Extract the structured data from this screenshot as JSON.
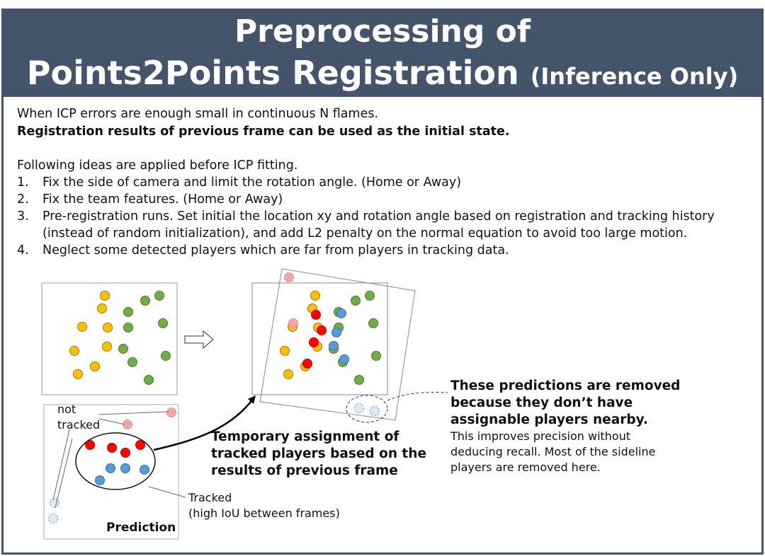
{
  "title": {
    "line1": "Preprocessing of",
    "line2": "Points2Points Registration",
    "line2_suffix": "(Inference Only)"
  },
  "intro": {
    "line1": "When ICP errors are enough small in continuous N flames.",
    "line2": "Registration results of previous frame can be used as the initial state."
  },
  "ideas": {
    "heading": "Following ideas are applied before ICP fitting.",
    "items": [
      {
        "num": "1.",
        "text": "Fix the side of camera and limit the rotation angle. (Home or Away)"
      },
      {
        "num": "2.",
        "text": "Fix the team features. (Home or Away)"
      },
      {
        "num": "3.",
        "text": "Pre-registration runs. Set initial the location xy and rotation angle based on registration and tracking history",
        "text2": "(instead of random initialization), and add L2 penalty on the normal equation to avoid too large motion."
      },
      {
        "num": "4.",
        "text": "Neglect some detected players which are far from players in tracking data."
      }
    ]
  },
  "diagram": {
    "not_tracked_1": "not",
    "not_tracked_2": "tracked",
    "prediction": "Prediction",
    "tracked_1": "Tracked",
    "tracked_2": "(high IoU between frames)",
    "temp_1": "Temporary assignment of",
    "temp_2": "tracked players based on the",
    "temp_3": "results of previous frame",
    "removed_1": "These predictions are removed",
    "removed_2": "because they don’t have",
    "removed_3": "assignable players nearby.",
    "note_1": "This improves precision without",
    "note_2": "deducing recall. Most of the sideline",
    "note_3": "players are removed here.",
    "icons": [
      "right-arrow-icon",
      "curved-arrow-icon"
    ]
  },
  "colors": {
    "header": "#44546a",
    "home": "#ffc000",
    "away": "#70ad47",
    "pred_red": "#ff0000",
    "pred_blue": "#5b9bd5",
    "untracked_pink": "#f4a6a6",
    "untracked_lightblue": "#deebf7"
  }
}
